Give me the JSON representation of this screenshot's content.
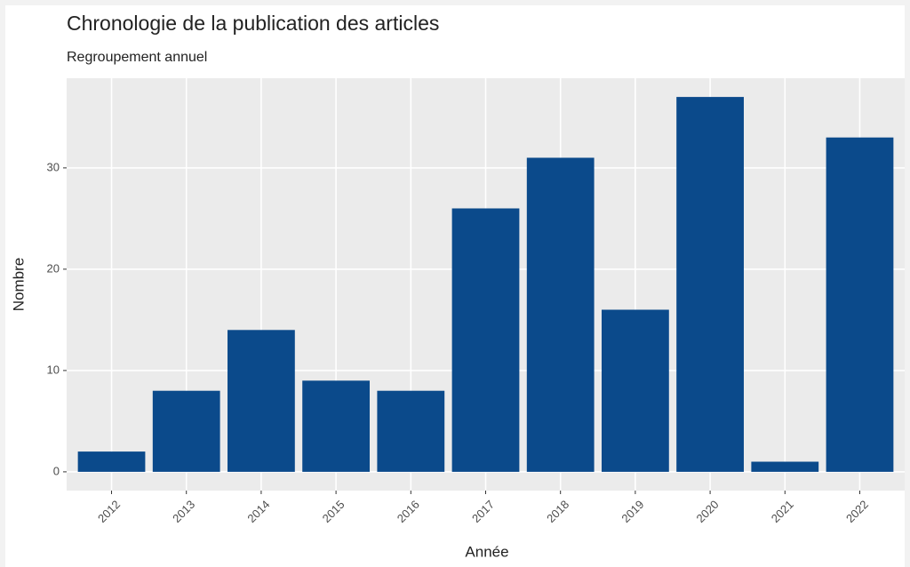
{
  "chart_data": {
    "type": "bar",
    "title": "Chronologie de la publication des articles",
    "subtitle": "Regroupement annuel",
    "x_label": "Année",
    "y_label": "Nombre",
    "categories": [
      "2012",
      "2013",
      "2014",
      "2015",
      "2016",
      "2017",
      "2018",
      "2019",
      "2020",
      "2021",
      "2022"
    ],
    "values": [
      2,
      8,
      14,
      9,
      8,
      26,
      31,
      16,
      37,
      1,
      33
    ],
    "color": "#0b4a8b",
    "ylim": [
      -1.85,
      38.85
    ],
    "yticks": [
      0,
      10,
      20,
      30
    ],
    "grid": true
  }
}
